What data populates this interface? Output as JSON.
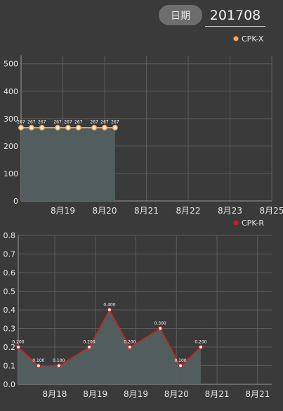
{
  "header": {
    "date_button_label": "日期",
    "date_value": "201708"
  },
  "colors": {
    "background": "#3a3a3a",
    "grid": "#5c5c5c",
    "fill": "#53605f",
    "cpkx_line": "#f5a85a",
    "cpkr_line": "#d01c1c"
  },
  "chart_data": [
    {
      "type": "line",
      "legend_position": "top-right",
      "series": [
        {
          "name": "CPK-X",
          "x": [
            0,
            0.25,
            0.5,
            0.875,
            1.125,
            1.375,
            1.75,
            2.0,
            2.25
          ],
          "values": [
            267,
            267,
            267,
            267,
            267,
            267,
            267,
            267,
            267
          ],
          "labels": [
            "267",
            "267",
            "267",
            "267",
            "267",
            "267",
            "267",
            "267",
            "267"
          ]
        }
      ],
      "x_tick_positions": [
        1,
        2,
        3,
        4,
        5,
        6
      ],
      "x_tick_labels": [
        "8月19",
        "8月20",
        "8月21",
        "8月22",
        "8月23",
        "8月25"
      ],
      "xlim": [
        0,
        6
      ],
      "ylim": [
        0,
        530
      ],
      "y_ticks": [
        0,
        100,
        200,
        300,
        400,
        500
      ],
      "y_tick_labels": [
        "0",
        "100",
        "200",
        "300",
        "400",
        "500"
      ],
      "grid": true,
      "area_fill": true
    },
    {
      "type": "line",
      "legend_position": "top-right",
      "series": [
        {
          "name": "CPK-R",
          "x": [
            0,
            0.5,
            1.0,
            1.75,
            2.25,
            2.75,
            3.5,
            4.0,
            4.5
          ],
          "values": [
            0.2,
            0.1,
            0.1,
            0.2,
            0.4,
            0.2,
            0.3,
            0.1,
            0.2
          ],
          "labels": [
            "0.200",
            "0.100",
            "0.100",
            "0.200",
            "0.400",
            "0.200",
            "0.300",
            "0.100",
            "0.200"
          ]
        }
      ],
      "x_tick_positions": [
        0.9,
        1.9,
        2.9,
        3.9,
        4.9,
        5.9
      ],
      "x_tick_labels": [
        "8月18",
        "8月19",
        "8月19",
        "8月20",
        "8月21",
        "8月21"
      ],
      "xlim": [
        0,
        6.25
      ],
      "ylim": [
        0,
        0.8
      ],
      "y_ticks": [
        0,
        0.1,
        0.2,
        0.3,
        0.4,
        0.5,
        0.6,
        0.7,
        0.8
      ],
      "y_tick_labels": [
        "0.0",
        "0.1",
        "0.2",
        "0.3",
        "0.4",
        "0.5",
        "0.6",
        "0.7",
        "0.8"
      ],
      "grid": true,
      "area_fill": true
    }
  ]
}
